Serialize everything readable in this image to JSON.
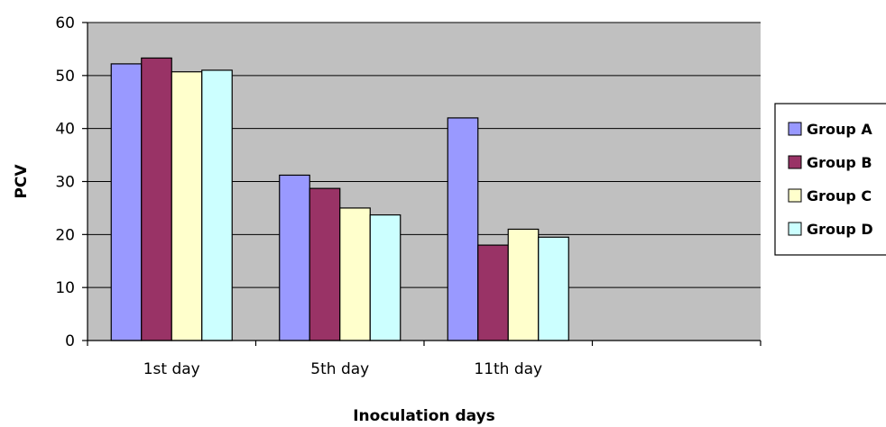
{
  "chart_data": {
    "type": "bar",
    "title": "",
    "xlabel": "Inoculation days",
    "ylabel": "PCV",
    "ylim": [
      0,
      60
    ],
    "yticks": [
      0,
      10,
      20,
      30,
      40,
      50,
      60
    ],
    "grid": true,
    "legend_position": "right",
    "categories": [
      "1st day",
      "5th day",
      "11th day",
      ""
    ],
    "series": [
      {
        "name": "Group A",
        "color": "#9999ff",
        "values": [
          52.2,
          31.2,
          42,
          null
        ]
      },
      {
        "name": "Group B",
        "color": "#993366",
        "values": [
          53.3,
          28.7,
          18,
          null
        ]
      },
      {
        "name": "Group C",
        "color": "#ffffcc",
        "values": [
          50.7,
          25,
          21,
          null
        ]
      },
      {
        "name": "Group D",
        "color": "#ccffff",
        "values": [
          51,
          23.7,
          19.5,
          null
        ]
      }
    ],
    "plot_background": "#c0c0c0"
  }
}
